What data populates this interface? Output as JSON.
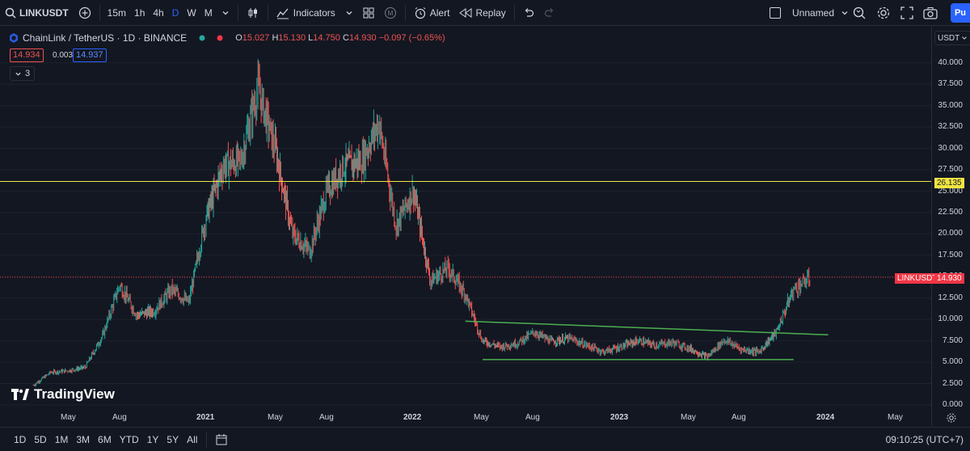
{
  "toolbar": {
    "symbol": "LINKUSDT",
    "timeframes": [
      "15m",
      "1h",
      "4h",
      "D",
      "W",
      "M"
    ],
    "active_timeframe": "D",
    "indicators_label": "Indicators",
    "alert_label": "Alert",
    "replay_label": "Replay",
    "layout_name": "Unnamed",
    "publish_label": "Pu"
  },
  "legend": {
    "title": "ChainLink / TetherUS · 1D · BINANCE",
    "open": "15.027",
    "high": "15.130",
    "low": "14.750",
    "close": "14.930",
    "change": "−0.097 (−0.65%)",
    "bid": "14.934",
    "spread": "0.003",
    "ask": "14.937",
    "collapsed_count": "3"
  },
  "price_axis": {
    "currency": "USDT",
    "ticks": [
      "40.000",
      "37.500",
      "35.000",
      "32.500",
      "30.000",
      "27.500",
      "25.000",
      "22.500",
      "20.000",
      "17.500",
      "15.000",
      "12.500",
      "10.000",
      "7.500",
      "5.000",
      "2.500",
      "0.000"
    ],
    "horizontal_level": "26.135",
    "last_symbol": "LINKUSDT",
    "last_price": "14.930"
  },
  "time_axis": {
    "ticks": [
      {
        "label": "May",
        "year": false
      },
      {
        "label": "Aug",
        "year": false
      },
      {
        "label": "2021",
        "year": true
      },
      {
        "label": "May",
        "year": false
      },
      {
        "label": "Aug",
        "year": false
      },
      {
        "label": "2022",
        "year": true
      },
      {
        "label": "May",
        "year": false
      },
      {
        "label": "Aug",
        "year": false
      },
      {
        "label": "2023",
        "year": true
      },
      {
        "label": "May",
        "year": false
      },
      {
        "label": "Aug",
        "year": false
      },
      {
        "label": "2024",
        "year": true
      },
      {
        "label": "May",
        "year": false
      }
    ]
  },
  "bottom": {
    "ranges": [
      "1D",
      "5D",
      "1M",
      "3M",
      "6M",
      "YTD",
      "1Y",
      "5Y",
      "All"
    ],
    "clock": "09:10:25 (UTC+7)"
  },
  "brand": "TradingView",
  "colors": {
    "background": "#131722",
    "up": "#26a69a",
    "down": "#ef5350",
    "horizontal_line": "#f0e442",
    "trendline": "#4caf50",
    "accent": "#2962ff"
  },
  "chart_data": {
    "type": "candlestick",
    "title": "ChainLink / TetherUS · 1D · BINANCE",
    "x_range": [
      "2020-03",
      "2024-06"
    ],
    "ylim": [
      0,
      42
    ],
    "approx_closes": [
      {
        "date": "2020-03",
        "price": 2.3
      },
      {
        "date": "2020-04",
        "price": 3.8
      },
      {
        "date": "2020-05",
        "price": 4.0
      },
      {
        "date": "2020-06",
        "price": 4.4
      },
      {
        "date": "2020-07",
        "price": 8.0
      },
      {
        "date": "2020-08",
        "price": 14.0
      },
      {
        "date": "2020-09",
        "price": 10.5
      },
      {
        "date": "2020-10",
        "price": 11.0
      },
      {
        "date": "2020-11",
        "price": 13.5
      },
      {
        "date": "2020-12",
        "price": 12.0
      },
      {
        "date": "2021-01",
        "price": 22.0
      },
      {
        "date": "2021-02",
        "price": 28.0
      },
      {
        "date": "2021-03",
        "price": 28.5
      },
      {
        "date": "2021-04",
        "price": 37.0
      },
      {
        "date": "2021-05",
        "price": 30.0
      },
      {
        "date": "2021-06",
        "price": 20.0
      },
      {
        "date": "2021-07",
        "price": 18.0
      },
      {
        "date": "2021-08",
        "price": 25.0
      },
      {
        "date": "2021-09",
        "price": 28.0
      },
      {
        "date": "2021-10",
        "price": 28.5
      },
      {
        "date": "2021-11",
        "price": 33.0
      },
      {
        "date": "2021-12",
        "price": 21.0
      },
      {
        "date": "2022-01",
        "price": 25.0
      },
      {
        "date": "2022-02",
        "price": 14.5
      },
      {
        "date": "2022-03",
        "price": 16.0
      },
      {
        "date": "2022-04",
        "price": 13.0
      },
      {
        "date": "2022-05",
        "price": 7.5
      },
      {
        "date": "2022-06",
        "price": 6.8
      },
      {
        "date": "2022-07",
        "price": 7.2
      },
      {
        "date": "2022-08",
        "price": 8.5
      },
      {
        "date": "2022-09",
        "price": 7.4
      },
      {
        "date": "2022-10",
        "price": 7.8
      },
      {
        "date": "2022-11",
        "price": 7.0
      },
      {
        "date": "2022-12",
        "price": 6.2
      },
      {
        "date": "2023-01",
        "price": 6.8
      },
      {
        "date": "2023-02",
        "price": 7.5
      },
      {
        "date": "2023-03",
        "price": 7.0
      },
      {
        "date": "2023-04",
        "price": 7.3
      },
      {
        "date": "2023-05",
        "price": 6.6
      },
      {
        "date": "2023-06",
        "price": 5.6
      },
      {
        "date": "2023-07",
        "price": 7.6
      },
      {
        "date": "2023-08",
        "price": 6.5
      },
      {
        "date": "2023-09",
        "price": 6.2
      },
      {
        "date": "2023-10",
        "price": 8.5
      },
      {
        "date": "2023-11",
        "price": 13.5
      },
      {
        "date": "2023-12",
        "price": 14.9
      }
    ],
    "horizontal_line": 26.135,
    "upper_trendline": [
      {
        "date": "2022-04",
        "price": 9.8
      },
      {
        "date": "2024-01",
        "price": 8.2
      }
    ],
    "lower_trendline": [
      {
        "date": "2022-05",
        "price": 5.3
      },
      {
        "date": "2023-11",
        "price": 5.3
      }
    ],
    "last_price": 14.93
  }
}
